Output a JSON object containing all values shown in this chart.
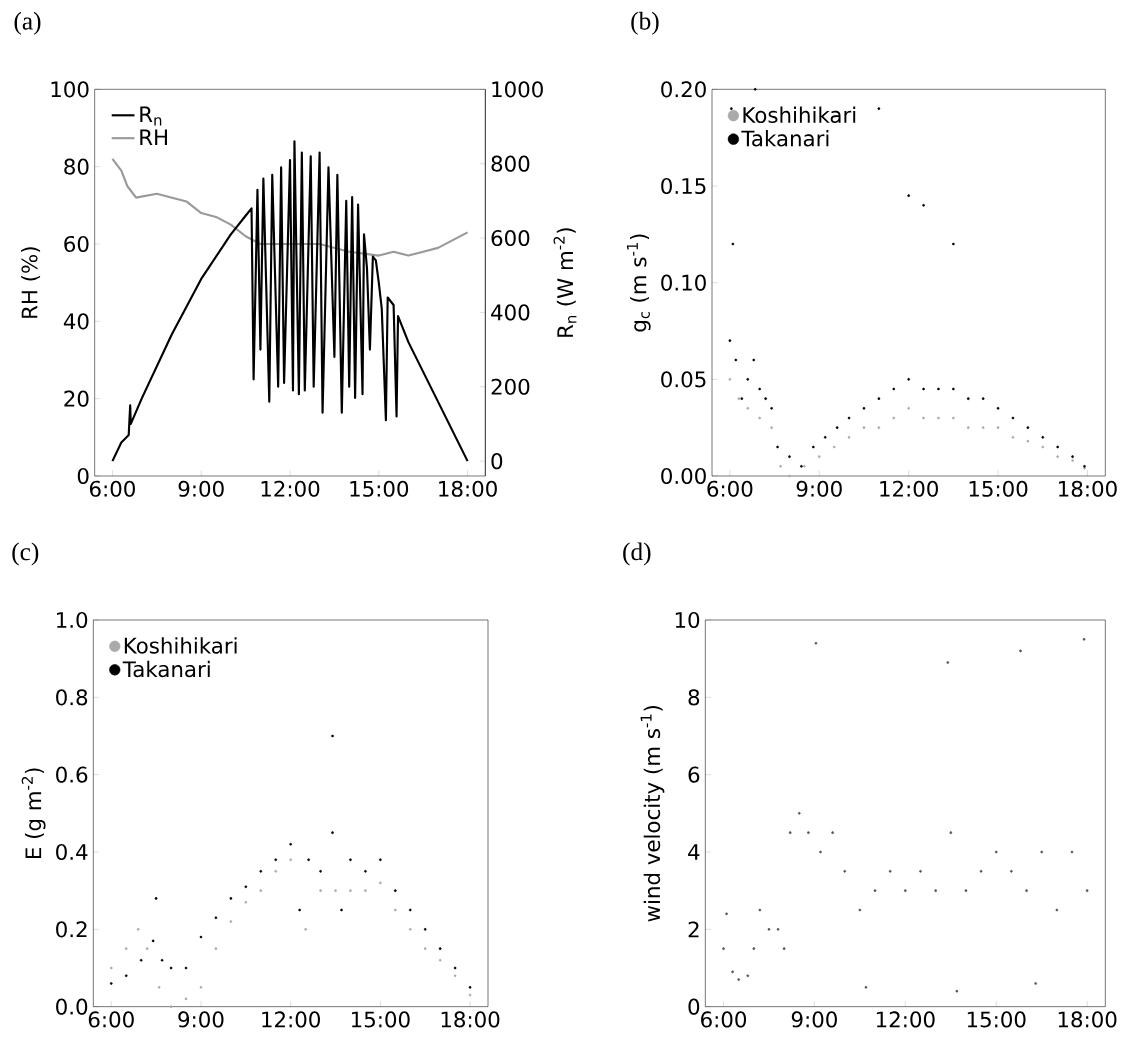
{
  "chart_data": [
    {
      "type": "line",
      "title": "(a)",
      "ylabel": "RH (%)",
      "y2label": "R$_{n}$ (W m$^{-2}$)",
      "legend": "top left",
      "xlim": [
        5.4,
        18.6
      ],
      "xticks": [
        {
          "value": 6,
          "label": "6:00"
        },
        {
          "value": 9,
          "label": "9:00"
        },
        {
          "value": 12,
          "label": "12:00"
        },
        {
          "value": 15,
          "label": "15:00"
        },
        {
          "value": 18,
          "label": "18:00"
        }
      ],
      "ylim": [
        0,
        100
      ],
      "yticks": [
        0,
        20,
        40,
        60,
        80,
        100
      ],
      "y2lim": [
        -40,
        1000
      ],
      "y2ticks": [
        0,
        200,
        400,
        600,
        800,
        1000
      ],
      "series": [
        {
          "name": "R$_{n}$",
          "color": "#000000",
          "axis": "y2",
          "x": [
            6.0,
            6.3,
            6.55,
            6.6,
            6.62,
            7.0,
            8.0,
            9.0,
            10.0,
            10.5,
            10.7,
            10.77,
            10.9,
            11.0,
            11.1,
            11.3,
            11.4,
            11.6,
            11.7,
            11.8,
            12.0,
            12.1,
            12.15,
            12.3,
            12.4,
            12.5,
            12.7,
            12.8,
            13.0,
            13.1,
            13.3,
            13.5,
            13.6,
            13.75,
            13.9,
            14.0,
            14.1,
            14.2,
            14.3,
            14.45,
            14.5,
            14.6,
            14.7,
            14.8,
            14.9,
            15.0,
            15.1,
            15.24,
            15.3,
            15.5,
            15.6,
            15.65,
            16.0,
            17.0,
            18.0
          ],
          "values": [
            0,
            50,
            70,
            150,
            100,
            170,
            340,
            490,
            610,
            660,
            680,
            220,
            730,
            300,
            760,
            160,
            770,
            200,
            790,
            210,
            810,
            190,
            860,
            180,
            830,
            190,
            820,
            200,
            830,
            130,
            790,
            280,
            770,
            130,
            700,
            200,
            710,
            170,
            690,
            180,
            610,
            520,
            300,
            550,
            540,
            480,
            410,
            110,
            440,
            420,
            120,
            390,
            320,
            160,
            0
          ]
        },
        {
          "name": "RH",
          "color": "#999999",
          "x": [
            6.0,
            6.3,
            6.5,
            6.8,
            7.5,
            8.5,
            9.0,
            9.5,
            10.0,
            10.5,
            11.0,
            12.0,
            13.0,
            14.0,
            15.0,
            15.5,
            16.0,
            16.5,
            17.0,
            17.5,
            18.0
          ],
          "values": [
            82,
            79,
            75,
            72,
            73,
            71,
            68,
            67,
            65,
            62,
            60,
            60,
            60,
            58,
            57,
            58,
            57,
            58,
            59,
            61,
            63
          ]
        }
      ]
    },
    {
      "type": "scatter",
      "title": "(b)",
      "ylabel": "g$_{c}$ (m s$^{-1}$)",
      "legend": "top left",
      "marker": "circle",
      "xlim": [
        5.4,
        18.6
      ],
      "xticks": [
        {
          "value": 6,
          "label": "6:00"
        },
        {
          "value": 9,
          "label": "9:00"
        },
        {
          "value": 12,
          "label": "12:00"
        },
        {
          "value": 15,
          "label": "15:00"
        },
        {
          "value": 18,
          "label": "18:00"
        }
      ],
      "ylim": [
        0,
        0.2
      ],
      "yticks": [
        {
          "value": 0,
          "label": "0.00"
        },
        {
          "value": 0.05,
          "label": "0.05"
        },
        {
          "value": 0.1,
          "label": "0.10"
        },
        {
          "value": 0.15,
          "label": "0.15"
        },
        {
          "value": 0.2,
          "label": "0.20"
        }
      ],
      "series": [
        {
          "name": "Koshihikari",
          "color": "#aaaaaa",
          "x": [
            6.0,
            6.3,
            6.6,
            7.0,
            7.4,
            7.7,
            8.0,
            8.5,
            9.0,
            9.5,
            10.0,
            10.5,
            11.0,
            11.5,
            12.0,
            12.5,
            13.0,
            13.5,
            14.0,
            14.5,
            15.0,
            15.5,
            16.0,
            16.5,
            17.0,
            17.5,
            17.9
          ],
          "values": [
            0.05,
            0.04,
            0.035,
            0.03,
            0.025,
            0.005,
            0.0,
            0.005,
            0.01,
            0.015,
            0.02,
            0.025,
            0.025,
            0.03,
            0.035,
            0.03,
            0.03,
            0.03,
            0.025,
            0.025,
            0.025,
            0.02,
            0.018,
            0.015,
            0.01,
            0.008,
            0.004
          ]
        },
        {
          "name": "Takanari",
          "color": "#000000",
          "x": [
            6.0,
            6.05,
            6.1,
            6.2,
            6.4,
            6.6,
            6.8,
            6.85,
            7.0,
            7.2,
            7.4,
            7.6,
            8.0,
            8.4,
            8.8,
            9.2,
            9.6,
            10.0,
            10.5,
            11.0,
            11.0,
            11.5,
            12.0,
            12.0,
            12.5,
            12.5,
            13.0,
            13.5,
            13.5,
            14.0,
            14.5,
            15.0,
            15.5,
            16.0,
            16.5,
            17.0,
            17.5,
            17.9
          ],
          "values": [
            0.07,
            0.19,
            0.12,
            0.06,
            0.04,
            0.05,
            0.06,
            0.2,
            0.045,
            0.04,
            0.035,
            0.015,
            0.01,
            0.005,
            0.015,
            0.02,
            0.025,
            0.03,
            0.035,
            0.04,
            0.19,
            0.045,
            0.05,
            0.145,
            0.045,
            0.14,
            0.045,
            0.045,
            0.12,
            0.04,
            0.04,
            0.035,
            0.03,
            0.025,
            0.02,
            0.015,
            0.01,
            0.005
          ]
        }
      ]
    },
    {
      "type": "scatter",
      "title": "(c)",
      "ylabel": "E (g m$^{-2}$)",
      "legend": "top left",
      "marker": "circle",
      "xlim": [
        5.4,
        18.6
      ],
      "xticks": [
        {
          "value": 6,
          "label": "6:00"
        },
        {
          "value": 9,
          "label": "9:00"
        },
        {
          "value": 12,
          "label": "12:00"
        },
        {
          "value": 15,
          "label": "15:00"
        },
        {
          "value": 18,
          "label": "18:00"
        }
      ],
      "ylim": [
        0,
        1.0
      ],
      "yticks": [
        {
          "value": 0,
          "label": "0.0"
        },
        {
          "value": 0.2,
          "label": "0.2"
        },
        {
          "value": 0.4,
          "label": "0.4"
        },
        {
          "value": 0.6,
          "label": "0.6"
        },
        {
          "value": 0.8,
          "label": "0.8"
        },
        {
          "value": 1.0,
          "label": "1.0"
        }
      ],
      "series": [
        {
          "name": "Koshihikari",
          "color": "#aaaaaa",
          "x": [
            6.0,
            6.5,
            6.9,
            7.2,
            7.6,
            8.0,
            8.5,
            9.0,
            9.5,
            10.0,
            10.5,
            11.0,
            11.5,
            12.0,
            12.5,
            13.0,
            13.5,
            14.0,
            14.5,
            15.0,
            15.5,
            16.0,
            16.5,
            17.0,
            17.5,
            18.0
          ],
          "values": [
            0.1,
            0.15,
            0.2,
            0.15,
            0.05,
            0.0,
            0.02,
            0.05,
            0.15,
            0.22,
            0.27,
            0.3,
            0.35,
            0.38,
            0.2,
            0.3,
            0.3,
            0.3,
            0.3,
            0.32,
            0.25,
            0.2,
            0.15,
            0.12,
            0.08,
            0.03
          ]
        },
        {
          "name": "Takanari",
          "color": "#000000",
          "x": [
            6.0,
            6.5,
            7.0,
            7.4,
            7.5,
            7.7,
            8.0,
            8.5,
            9.0,
            9.5,
            10.0,
            10.5,
            11.0,
            11.5,
            12.0,
            12.3,
            12.6,
            13.0,
            13.4,
            13.4,
            13.7,
            14.0,
            14.5,
            15.0,
            15.5,
            16.0,
            16.5,
            17.0,
            17.5,
            18.0
          ],
          "values": [
            0.06,
            0.08,
            0.12,
            0.17,
            0.28,
            0.12,
            0.1,
            0.1,
            0.18,
            0.23,
            0.28,
            0.31,
            0.35,
            0.38,
            0.42,
            0.25,
            0.38,
            0.35,
            0.45,
            0.7,
            0.25,
            0.38,
            0.35,
            0.38,
            0.3,
            0.25,
            0.2,
            0.15,
            0.1,
            0.05
          ]
        }
      ]
    },
    {
      "type": "scatter",
      "title": "(d)",
      "ylabel": "wind velocity (m s$^{-1}$)",
      "marker": "circle",
      "xlim": [
        5.4,
        18.6
      ],
      "xticks": [
        {
          "value": 6,
          "label": "6:00"
        },
        {
          "value": 9,
          "label": "9:00"
        },
        {
          "value": 12,
          "label": "12:00"
        },
        {
          "value": 15,
          "label": "15:00"
        },
        {
          "value": 18,
          "label": "18:00"
        }
      ],
      "ylim": [
        0,
        10
      ],
      "yticks": [
        0,
        2,
        4,
        6,
        8,
        10
      ],
      "series": [
        {
          "color": "#555555",
          "x": [
            6.0,
            6.1,
            6.3,
            6.5,
            6.8,
            7.0,
            7.2,
            7.5,
            7.8,
            8.0,
            8.2,
            8.5,
            8.8,
            9.05,
            9.2,
            9.6,
            10.0,
            10.5,
            10.7,
            11.0,
            11.5,
            12.0,
            12.5,
            13.0,
            13.4,
            13.5,
            13.7,
            14.0,
            14.5,
            15.0,
            15.5,
            15.8,
            16.0,
            16.3,
            16.5,
            17.0,
            17.5,
            17.9,
            18.0
          ],
          "values": [
            1.5,
            2.4,
            0.9,
            0.7,
            0.8,
            1.5,
            2.5,
            2.0,
            2.0,
            1.5,
            4.5,
            5.0,
            4.5,
            9.4,
            4.0,
            4.5,
            3.5,
            2.5,
            0.5,
            3.0,
            3.5,
            3.0,
            3.5,
            3.0,
            8.9,
            4.5,
            0.4,
            3.0,
            3.5,
            4.0,
            3.5,
            9.2,
            3.0,
            0.6,
            4.0,
            2.5,
            4.0,
            9.5,
            3.0
          ]
        }
      ]
    }
  ]
}
